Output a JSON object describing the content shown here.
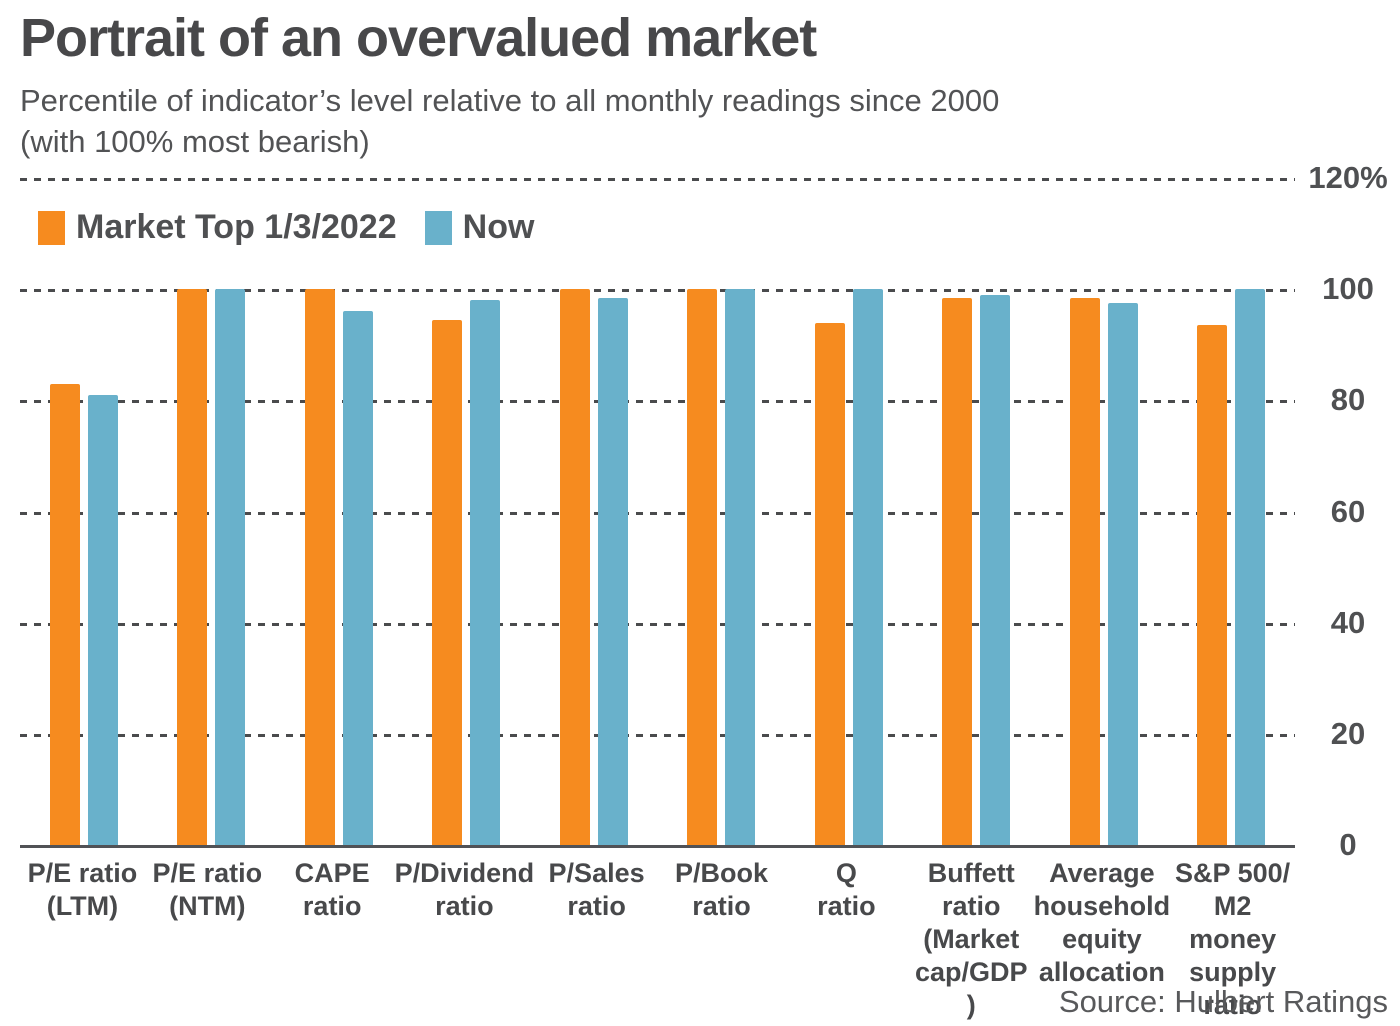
{
  "header": {
    "title": "Portrait of an overvalued market",
    "subtitle": "Percentile of indicator’s level relative to all monthly readings since 2000\n(with 100% most bearish)"
  },
  "source": "Source: Hulbert Ratings",
  "colors": {
    "market_top_orange": "#F68B1F",
    "now_blue": "#69B1CB",
    "grid_gray": "#4A4B4D",
    "axis_gray": "#515256",
    "text_gray": "#4F5052"
  },
  "chart_data": {
    "type": "bar",
    "title": "Portrait of an overvalued market",
    "subtitle": "Percentile of indicator’s level relative to all monthly readings since 2000 (with 100% most bearish)",
    "categories": [
      "P/E ratio\n(LTM)",
      "P/E ratio\n(NTM)",
      "CAPE\nratio",
      "P/Dividend\nratio",
      "P/Sales\nratio",
      "P/Book\nratio",
      "Q\nratio",
      "Buffett\nratio\n(Market\ncap/GDP )",
      "Average\nhousehold\nequity\nallocation",
      "S&P 500/\nM2 money\nsupply\nratio"
    ],
    "series": [
      {
        "name": "Market Top 1/3/2022",
        "color": "#F68B1F",
        "values": [
          83,
          100,
          100,
          94.5,
          100,
          100,
          94,
          98.5,
          98.5,
          93.5
        ]
      },
      {
        "name": "Now",
        "color": "#69B1CB",
        "values": [
          81,
          100,
          96,
          98,
          98.5,
          100,
          100,
          99,
          97.5,
          100
        ]
      }
    ],
    "ylim": [
      0,
      120
    ],
    "yticks": [
      {
        "value": 120,
        "label": "120%"
      },
      {
        "value": 100,
        "label": "100"
      },
      {
        "value": 80,
        "label": "80"
      },
      {
        "value": 60,
        "label": "60"
      },
      {
        "value": 40,
        "label": "40"
      },
      {
        "value": 20,
        "label": "20"
      },
      {
        "value": 0,
        "label": "0"
      }
    ],
    "grid": "horizontal-dotted",
    "legend_position": "top-left",
    "source": "Source: Hulbert Ratings"
  }
}
